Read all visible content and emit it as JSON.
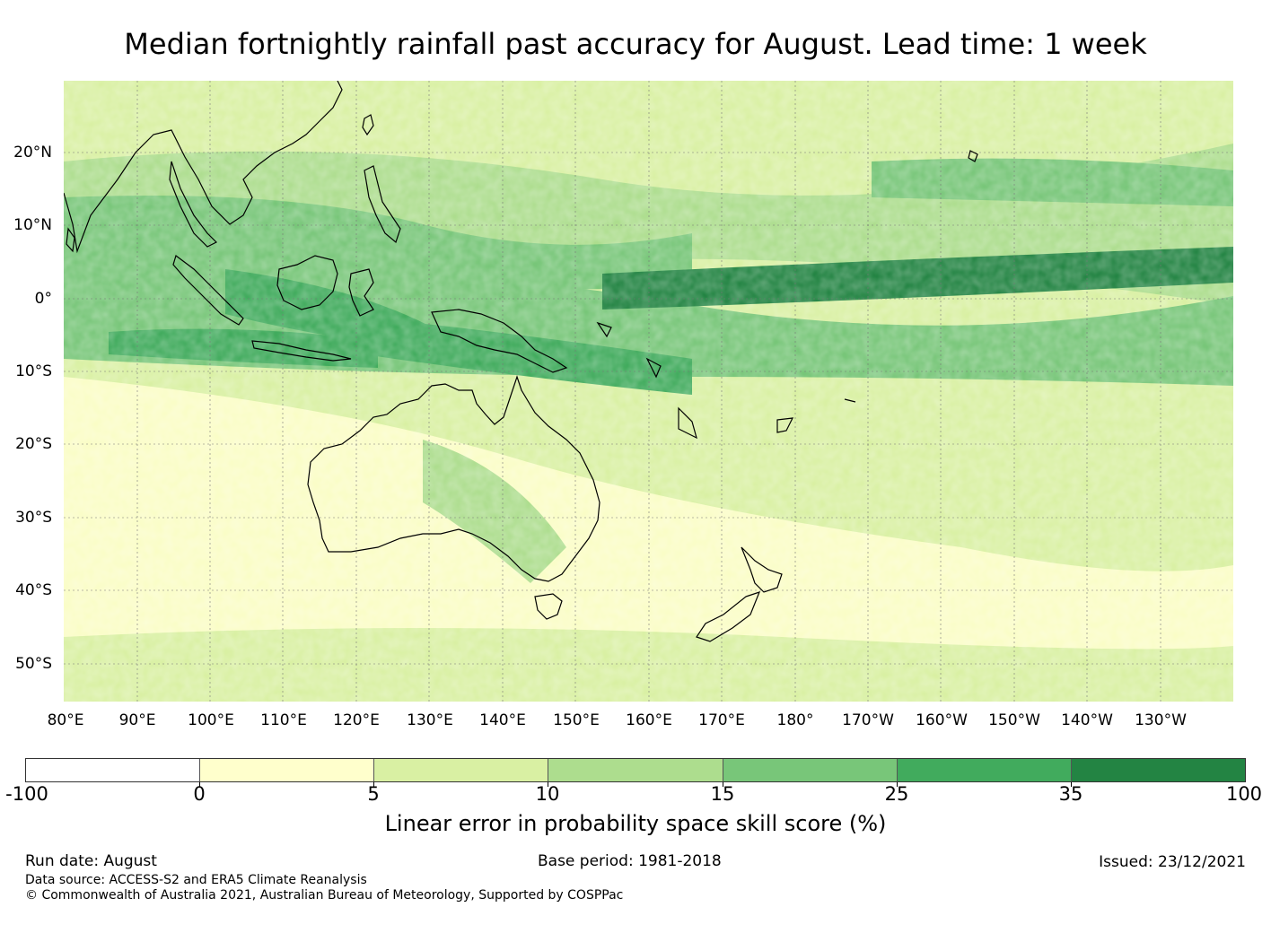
{
  "title": "Median fortnightly rainfall past accuracy for August. Lead time: 1 week",
  "map": {
    "lon_labels": [
      "80°E",
      "90°E",
      "100°E",
      "110°E",
      "120°E",
      "130°E",
      "140°E",
      "150°E",
      "160°E",
      "170°E",
      "180°",
      "170°W",
      "160°W",
      "150°W",
      "140°W",
      "130°W"
    ],
    "lat_labels": [
      "20°N",
      "10°N",
      "0°",
      "10°S",
      "20°S",
      "30°S",
      "40°S",
      "50°S"
    ],
    "grid": true
  },
  "colorbar": {
    "ticks": [
      "-100",
      "0",
      "5",
      "10",
      "15",
      "25",
      "35",
      "100"
    ],
    "colors": [
      "#ffffff",
      "#ffffcc",
      "#d9f0a3",
      "#addd8e",
      "#78c679",
      "#41ab5d",
      "#238443"
    ],
    "label": "Linear error in probability space skill score (%)"
  },
  "footer": {
    "run_date": "Run date: August",
    "base_period": "Base period: 1981-2018",
    "issued": "Issued: 23/12/2021",
    "data_source": "Data source: ACCESS-S2 and ERA5 Climate Reanalysis",
    "copyright": "© Commonwealth of Australia 2021, Australian Bureau of Meteorology, Supported by COSPPac"
  }
}
